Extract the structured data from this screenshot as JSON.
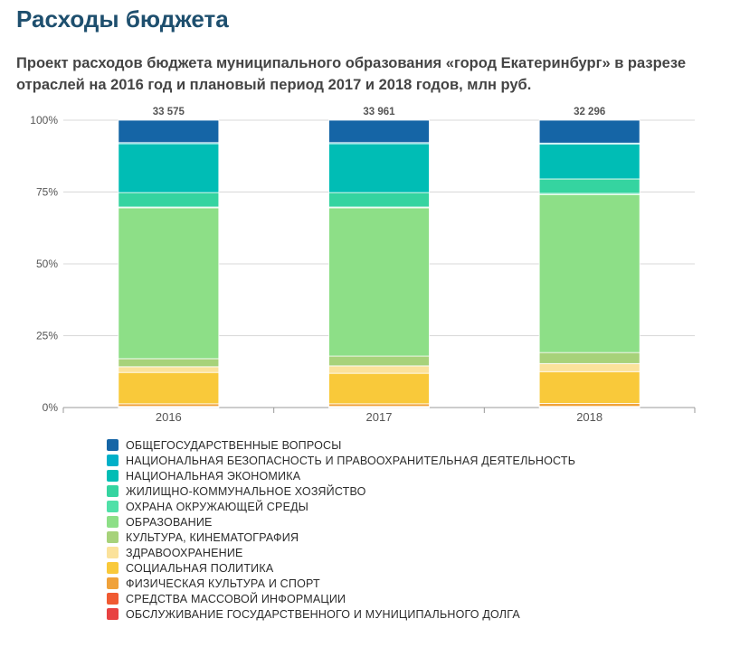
{
  "header": {
    "title": "Расходы бюджета",
    "subtitle": "Проект расходов бюджета муниципального образования «город Екатеринбург» в разрезе отраслей на 2016 год и плановый период 2017 и 2018 годов, млн руб."
  },
  "chart_data": {
    "type": "bar",
    "stacked": "percent",
    "categories": [
      "2016",
      "2017",
      "2018"
    ],
    "totals": [
      33575,
      33961,
      32296
    ],
    "total_labels": [
      "33 575",
      "33 961",
      "32 296"
    ],
    "y_ticks": [
      "0%",
      "25%",
      "50%",
      "75%",
      "100%"
    ],
    "ylim": [
      0,
      100
    ],
    "grid": true,
    "legend_position": "bottom",
    "series": [
      {
        "name": "ОБЩЕГОСУДАРСТВЕННЫЕ ВОПРОСЫ",
        "color": "#1565a6",
        "values": [
          7.8,
          7.8,
          7.9
        ]
      },
      {
        "name": "НАЦИОНАЛЬНАЯ БЕЗОПАСНОСТЬ И ПРАВООХРАНИТЕЛЬНАЯ ДЕЯТЕЛЬНОСТЬ",
        "color": "#00b0c8",
        "values": [
          0.4,
          0.4,
          0.4
        ]
      },
      {
        "name": "НАЦИОНАЛЬНАЯ ЭКОНОМИКА",
        "color": "#00bdb5",
        "values": [
          17.0,
          17.0,
          12.0
        ]
      },
      {
        "name": "ЖИЛИЩНО-КОММУНАЛЬНОЕ ХОЗЯЙСТВО",
        "color": "#35d4a0",
        "values": [
          5.0,
          5.0,
          5.0
        ]
      },
      {
        "name": "ОХРАНА ОКРУЖАЮЩЕЙ СРЕДЫ",
        "color": "#50e0a8",
        "values": [
          0.3,
          0.3,
          0.4
        ]
      },
      {
        "name": "ОБРАЗОВАНИЕ",
        "color": "#8ddf87",
        "values": [
          52.5,
          51.6,
          54.6
        ]
      },
      {
        "name": "КУЛЬТУРА, КИНЕМАТОГРАФИЯ",
        "color": "#a7d27a",
        "values": [
          2.8,
          3.4,
          3.8
        ]
      },
      {
        "name": "ЗДРАВООХРАНЕНИЕ",
        "color": "#fbe29b",
        "values": [
          2.0,
          2.6,
          2.8
        ]
      },
      {
        "name": "СОЦИАЛЬНАЯ ПОЛИТИКА",
        "color": "#f9c93a",
        "values": [
          10.9,
          10.6,
          11.0
        ]
      },
      {
        "name": "ФИЗИЧЕСКАЯ КУЛЬТУРА И СПОРТ",
        "color": "#f0a23a",
        "values": [
          0.9,
          0.9,
          1.0
        ]
      },
      {
        "name": "СРЕДСТВА МАССОВОЙ ИНФОРМАЦИИ",
        "color": "#f05a32",
        "values": [
          0.2,
          0.2,
          0.2
        ]
      },
      {
        "name": "ОБСЛУЖИВАНИЕ ГОСУДАРСТВЕННОГО И МУНИЦИПАЛЬНОГО ДОЛГА",
        "color": "#e84242",
        "values": [
          0.2,
          0.2,
          0.2
        ]
      }
    ]
  }
}
